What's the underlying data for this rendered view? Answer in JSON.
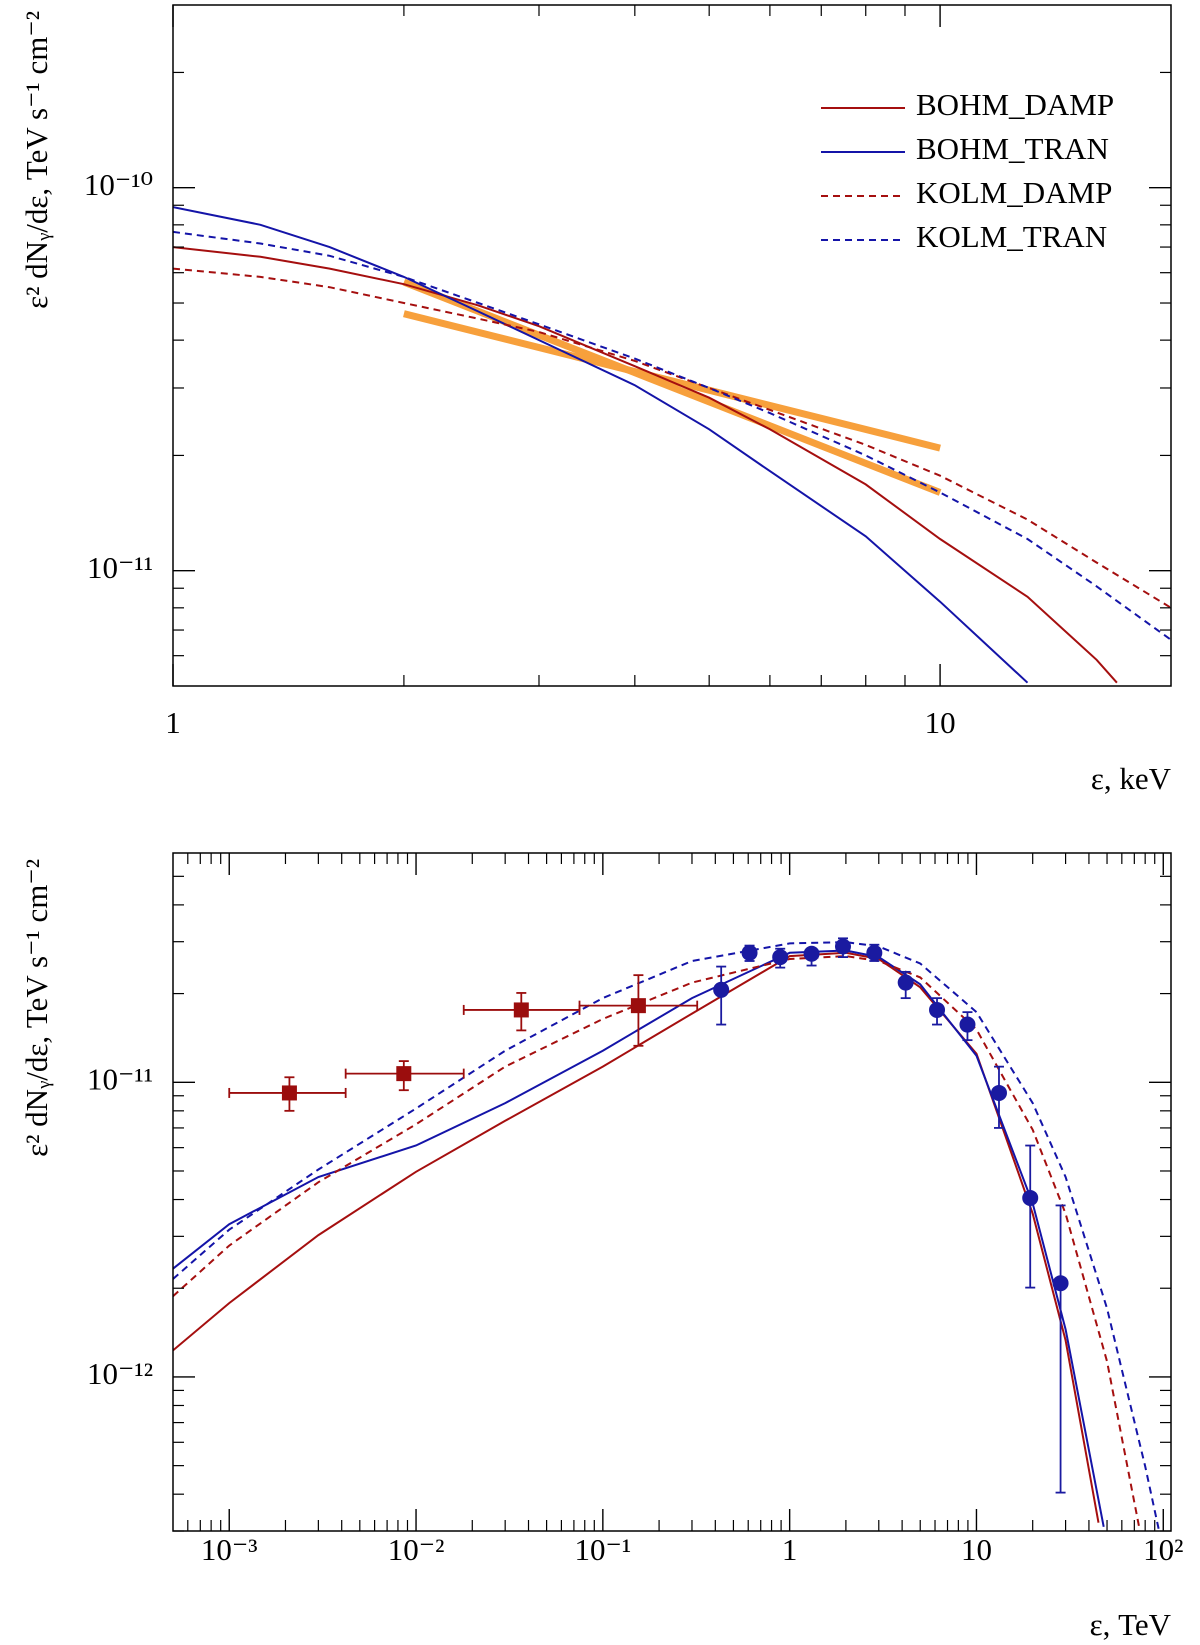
{
  "chart_data": [
    {
      "type": "line",
      "xlabel": "ε, keV",
      "ylabel": "ε² dNᵧ/dε, TeV s⁻¹ cm⁻²",
      "xlog": true,
      "ylog": true,
      "xlim": [
        1,
        20
      ],
      "ylim": [
        5e-12,
        3e-10
      ],
      "xticks": [
        1,
        10
      ],
      "yticks": [
        {
          "value": 1e-11,
          "label": "10⁻¹¹"
        },
        {
          "value": 1e-10,
          "label": "10⁻¹⁰"
        }
      ],
      "legend": "upper right",
      "series": [
        {
          "name": "BOHM_DAMP",
          "color": "#a50f0f",
          "dashed": false,
          "x": [
            1,
            1.3,
            1.6,
            2,
            2.5,
            3,
            4,
            5,
            6,
            8,
            10,
            13,
            16,
            17
          ],
          "values": [
            7e-11,
            6.6e-11,
            6.15e-11,
            5.6e-11,
            4.93e-11,
            4.35e-11,
            3.42e-11,
            2.83e-11,
            2.34e-11,
            1.68e-11,
            1.21e-11,
            8.55e-12,
            5.85e-12,
            5.1e-12
          ]
        },
        {
          "name": "BOHM_TRAN",
          "color": "#1414a8",
          "dashed": false,
          "x": [
            1,
            1.3,
            1.6,
            2,
            2.5,
            3,
            4,
            5,
            6,
            8,
            10,
            13
          ],
          "values": [
            8.9e-11,
            8e-11,
            7e-11,
            5.85e-11,
            4.75e-11,
            4e-11,
            3.05e-11,
            2.34e-11,
            1.82e-11,
            1.23e-11,
            8.3e-12,
            5.1e-12
          ]
        },
        {
          "name": "KOLM_DAMP",
          "color": "#a50f0f",
          "dashed": true,
          "x": [
            1,
            1.3,
            1.6,
            2,
            2.5,
            3,
            4,
            5,
            6,
            8,
            10,
            13,
            16,
            20
          ],
          "values": [
            6.15e-11,
            5.85e-11,
            5.5e-11,
            5e-11,
            4.55e-11,
            4.2e-11,
            3.53e-11,
            3e-11,
            2.63e-11,
            2.13e-11,
            1.77e-11,
            1.36e-11,
            1.05e-11,
            8e-12
          ]
        },
        {
          "name": "KOLM_TRAN",
          "color": "#1414a8",
          "dashed": true,
          "x": [
            1,
            1.3,
            1.6,
            2,
            2.5,
            3,
            4,
            5,
            6,
            8,
            10,
            13,
            16,
            20
          ],
          "values": [
            7.67e-11,
            7.15e-11,
            6.64e-11,
            5.85e-11,
            5e-11,
            4.4e-11,
            3.58e-11,
            3e-11,
            2.58e-11,
            2e-11,
            1.6e-11,
            1.21e-11,
            9.1e-12,
            6.6e-12
          ]
        }
      ],
      "fits": [
        {
          "color": "#f7a03c",
          "x": [
            2,
            10
          ],
          "values": [
            5.67e-11,
            1.6e-11
          ]
        },
        {
          "color": "#f7a03c",
          "x": [
            2,
            10
          ],
          "values": [
            4.69e-11,
            2.09e-11
          ]
        }
      ]
    },
    {
      "type": "line",
      "xlabel": "ε, TeV",
      "ylabel": "ε² dNᵧ/dε, TeV s⁻¹ cm⁻²",
      "xlog": true,
      "ylog": true,
      "xlim": [
        0.0005,
        110
      ],
      "ylim": [
        3e-13,
        6e-11
      ],
      "xticks": [
        {
          "value": 0.001,
          "label": "10⁻³"
        },
        {
          "value": 0.01,
          "label": "10⁻²"
        },
        {
          "value": 0.1,
          "label": "10⁻¹"
        },
        1,
        10,
        {
          "value": 100,
          "label": "10²"
        }
      ],
      "yticks": [
        {
          "value": 1e-12,
          "label": "10⁻¹²"
        },
        {
          "value": 1e-11,
          "label": "10⁻¹¹"
        }
      ],
      "series": [
        {
          "color": "#a50f0f",
          "dashed": false,
          "x": [
            0.0005,
            0.001,
            0.003,
            0.01,
            0.03,
            0.1,
            0.3,
            1,
            2,
            3,
            5,
            10,
            20,
            30,
            45
          ],
          "values": [
            1.23e-12,
            1.78e-12,
            3.03e-12,
            4.97e-12,
            7.4e-12,
            1.13e-11,
            1.71e-11,
            2.68e-11,
            2.75e-11,
            2.62e-11,
            2.1e-11,
            1.25e-11,
            3.58e-12,
            1.33e-12,
            3.2e-13
          ]
        },
        {
          "color": "#1414a8",
          "dashed": false,
          "x": [
            0.0005,
            0.001,
            0.003,
            0.01,
            0.03,
            0.1,
            0.3,
            1,
            2,
            3,
            5,
            10,
            20,
            30,
            48
          ],
          "values": [
            2.33e-12,
            3.3e-12,
            4.77e-12,
            6.1e-12,
            8.5e-12,
            1.28e-11,
            1.93e-11,
            2.75e-11,
            2.8e-11,
            2.66e-11,
            2.15e-11,
            1.23e-11,
            3.88e-12,
            1.45e-12,
            3.1e-13
          ]
        },
        {
          "color": "#a50f0f",
          "dashed": true,
          "x": [
            0.0005,
            0.001,
            0.003,
            0.01,
            0.03,
            0.1,
            0.3,
            1,
            2,
            3,
            5,
            10,
            20,
            30,
            50,
            75
          ],
          "values": [
            1.88e-12,
            2.79e-12,
            4.58e-12,
            7.2e-12,
            1.13e-11,
            1.64e-11,
            2.18e-11,
            2.62e-11,
            2.68e-11,
            2.58e-11,
            2.27e-11,
            1.51e-11,
            6.9e-12,
            3.58e-12,
            1.13e-12,
            3e-13
          ]
        },
        {
          "color": "#1414a8",
          "dashed": true,
          "x": [
            0.0005,
            0.001,
            0.003,
            0.01,
            0.03,
            0.1,
            0.3,
            1,
            2,
            3,
            5,
            10,
            20,
            30,
            50,
            80,
            95
          ],
          "values": [
            2.15e-12,
            3.16e-12,
            5.06e-12,
            8.15e-12,
            1.28e-11,
            1.93e-11,
            2.58e-11,
            2.96e-11,
            2.99e-11,
            2.89e-11,
            2.53e-11,
            1.73e-11,
            8.5e-12,
            4.77e-12,
            1.71e-12,
            4.97e-13,
            3e-13
          ]
        }
      ],
      "points": [
        {
          "color": "#9b0d0d",
          "marker": "square",
          "x": [
            0.0021,
            0.0086,
            0.0366,
            0.155
          ],
          "values": [
            9.2e-12,
            1.07e-11,
            1.76e-11,
            1.82e-11
          ],
          "xmin": [
            0.001,
            0.0042,
            0.018,
            0.075
          ],
          "xmax": [
            0.0042,
            0.018,
            0.075,
            0.32
          ],
          "ymin": [
            8e-12,
            9.4e-12,
            1.5e-11,
            1.33e-11
          ],
          "ymax": [
            1.04e-11,
            1.18e-11,
            2.01e-11,
            2.31e-11
          ]
        },
        {
          "color": "#1a1aa0",
          "marker": "circle",
          "x": [
            0.43,
            0.61,
            0.89,
            1.31,
            1.93,
            2.84,
            4.18,
            6.15,
            8.95,
            13.2,
            19.4,
            28.2
          ],
          "values": [
            2.06e-11,
            2.75e-11,
            2.66e-11,
            2.73e-11,
            2.89e-11,
            2.75e-11,
            2.18e-11,
            1.76e-11,
            1.57e-11,
            9.2e-12,
            4.05e-12,
            2.08e-12
          ],
          "ymin": [
            1.57e-11,
            2.58e-11,
            2.45e-11,
            2.49e-11,
            2.66e-11,
            2.58e-11,
            1.93e-11,
            1.57e-11,
            1.39e-11,
            7e-12,
            2.01e-12,
            4.05e-13
          ],
          "ymax": [
            2.47e-11,
            2.91e-11,
            2.84e-11,
            2.84e-11,
            3.08e-11,
            2.93e-11,
            2.37e-11,
            1.93e-11,
            1.73e-11,
            1.13e-11,
            6.1e-12,
            3.82e-12
          ]
        }
      ]
    }
  ]
}
